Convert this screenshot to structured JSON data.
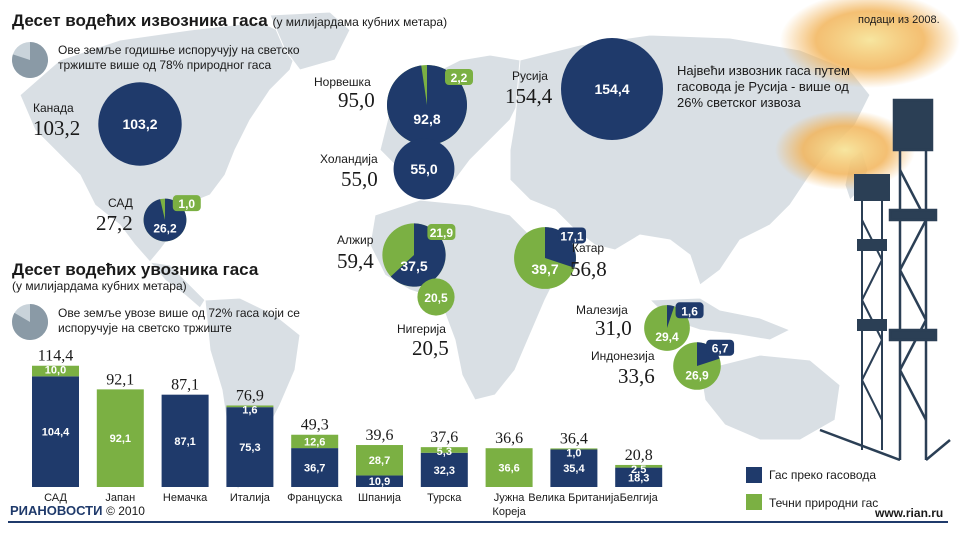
{
  "header": {
    "exporters_title": "Десет водећих извозника гаса",
    "exporters_subtitle": "(у милијардама кубних метара)",
    "data_note": "подаци из 2008.",
    "exporters_share_note": "Ове земље годишње испоручују на светско тржиште више од 78% природног гаса",
    "importers_title": "Десет водећих увозника гаса",
    "importers_subtitle": "(у милијардама кубних метара)",
    "importers_share_note": "Ове земље увозе више од 72% гаса који се испоручује на светско тржиште",
    "russia_note": "Највећи извозник гаса путем гасовода је Русија - више од 26% светског извоза"
  },
  "colors": {
    "pipeline": "#1f3a6b",
    "lng": "#7bb043",
    "map": "#d9dfe4",
    "pie_light": "#c9d3da",
    "pie_dark": "#8a9aa6"
  },
  "legend": {
    "pipeline": "Гас преко гасовода",
    "lng": "Течни природни гас"
  },
  "footer": {
    "brand_ria": "РИА",
    "brand_novosti": "НОВОСТИ",
    "copyright": "© 2010",
    "site": "www.rian.ru"
  },
  "chart_data": [
    {
      "type": "scatter",
      "title": "Десет водећих извозника гаса",
      "subtitle": "(у милијардама кубних метара)",
      "series_names": [
        "Гас преко гасовода",
        "Течни природни гас"
      ],
      "points": [
        {
          "country": "Канада",
          "total": "103,2",
          "pipeline": 103.2,
          "lng": 0,
          "pipeline_label": "103,2",
          "lng_label": ""
        },
        {
          "country": "САД",
          "total": "27,2",
          "pipeline": 26.2,
          "lng": 1.0,
          "pipeline_label": "26,2",
          "lng_label": "1,0"
        },
        {
          "country": "Норвешка",
          "total": "95,0",
          "pipeline": 92.8,
          "lng": 2.2,
          "pipeline_label": "92,8",
          "lng_label": "2,2"
        },
        {
          "country": "Холандија",
          "total": "55,0",
          "pipeline": 55.0,
          "lng": 0,
          "pipeline_label": "55,0",
          "lng_label": ""
        },
        {
          "country": "Русија",
          "total": "154,4",
          "pipeline": 154.4,
          "lng": 0,
          "pipeline_label": "154,4",
          "lng_label": ""
        },
        {
          "country": "Алжир",
          "total": "59,4",
          "pipeline": 37.5,
          "lng": 21.9,
          "pipeline_label": "37,5",
          "lng_label": "21,9"
        },
        {
          "country": "Нигерија",
          "total": "20,5",
          "pipeline": 0,
          "lng": 20.5,
          "pipeline_label": "",
          "lng_label": "20,5"
        },
        {
          "country": "Катар",
          "total": "56,8",
          "pipeline": 17.1,
          "lng": 39.7,
          "pipeline_label": "17,1",
          "lng_label": "39,7"
        },
        {
          "country": "Малезија",
          "total": "31,0",
          "pipeline": 1.6,
          "lng": 29.4,
          "pipeline_label": "1,6",
          "lng_label": "29,4"
        },
        {
          "country": "Индонезија",
          "total": "33,6",
          "pipeline": 6.7,
          "lng": 26.9,
          "pipeline_label": "6,7",
          "lng_label": "26,9"
        }
      ]
    },
    {
      "type": "bar",
      "title": "Десет водећих увозника гаса",
      "subtitle": "(у милијардама кубних метара)",
      "categories": [
        "САД",
        "Јапан",
        "Немачка",
        "Италија",
        "Француска",
        "Шпанија",
        "Турска",
        "Јужна Кореја",
        "Велика Британија",
        "Белгија"
      ],
      "category_lines": [
        [
          "САД"
        ],
        [
          "Јапан"
        ],
        [
          "Немачка"
        ],
        [
          "Италија"
        ],
        [
          "Француска"
        ],
        [
          "Шпанија"
        ],
        [
          "Турска"
        ],
        [
          "Јужна",
          "Кореја"
        ],
        [
          "Велика Британија"
        ],
        [
          "Белгија"
        ]
      ],
      "totals": [
        "114,4",
        "92,1",
        "87,1",
        "76,9",
        "49,3",
        "39,6",
        "37,6",
        "36,6",
        "36,4",
        "20,8"
      ],
      "series": [
        {
          "name": "Гас преко гасовода",
          "values": [
            104.4,
            0,
            87.1,
            75.3,
            36.7,
            10.9,
            32.3,
            0,
            35.4,
            18.3
          ],
          "labels": [
            "104,4",
            "",
            "87,1",
            "75,3",
            "36,7",
            "10,9",
            "32,3",
            "",
            "35,4",
            "18,3"
          ]
        },
        {
          "name": "Течни природни гас",
          "values": [
            10.0,
            92.1,
            0,
            1.6,
            12.6,
            28.7,
            5.3,
            36.6,
            1.0,
            2.5
          ],
          "labels": [
            "10,0",
            "92,1",
            "",
            "1,6",
            "12,6",
            "28,7",
            "5,3",
            "36,6",
            "1,0",
            "2,5"
          ]
        }
      ],
      "stacked": true,
      "ylim": [
        0,
        120
      ]
    }
  ]
}
